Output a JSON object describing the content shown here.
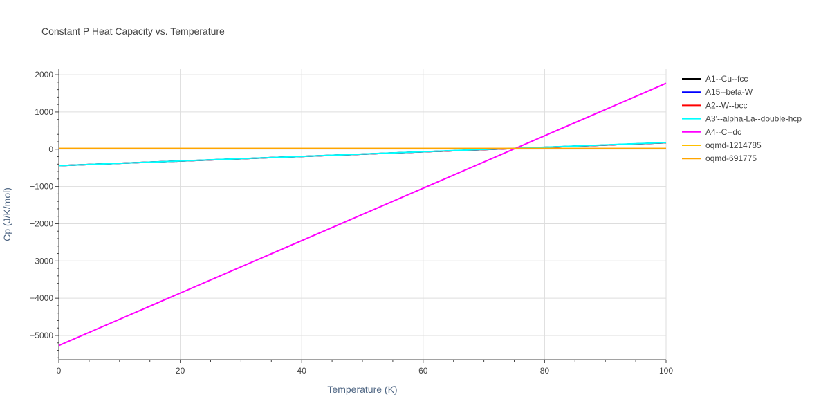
{
  "chart_data": {
    "type": "line",
    "title": "Constant P Heat Capacity vs. Temperature",
    "xlabel": "Temperature (K)",
    "ylabel": "Cp (J/K/mol)",
    "xlim": [
      0,
      100
    ],
    "ylim": [
      -5650,
      2150
    ],
    "xticks": [
      0,
      20,
      40,
      60,
      80,
      100
    ],
    "yticks": [
      2000,
      1000,
      0,
      -1000,
      -2000,
      -3000,
      -4000,
      -5000
    ],
    "ytick_labels": [
      "2000",
      "1000",
      "0",
      "−1000",
      "−2000",
      "−3000",
      "−4000",
      "−5000"
    ],
    "grid": true,
    "legend_position": "right",
    "series": [
      {
        "name": "A1--Cu--fcc",
        "color": "#000000",
        "x": [
          0,
          100
        ],
        "y": [
          -440,
          175
        ]
      },
      {
        "name": "A15--beta-W",
        "color": "#0000ff",
        "x": [
          0,
          100
        ],
        "y": [
          -440,
          175
        ]
      },
      {
        "name": "A2--W--bcc",
        "color": "#ff0000",
        "x": [
          0,
          100
        ],
        "y": [
          -440,
          175
        ]
      },
      {
        "name": "A3'--alpha-La--double-hcp",
        "color": "#00ffff",
        "x": [
          0,
          100
        ],
        "y": [
          -440,
          180
        ]
      },
      {
        "name": "A4--C--dc",
        "color": "#ff00ff",
        "x": [
          0,
          100
        ],
        "y": [
          -5270,
          1770
        ]
      },
      {
        "name": "oqmd-1214785",
        "color": "#ffc000",
        "x": [
          0,
          100
        ],
        "y": [
          20,
          20
        ]
      },
      {
        "name": "oqmd-691775",
        "color": "#ffa500",
        "x": [
          0,
          100
        ],
        "y": [
          22,
          22
        ]
      }
    ]
  }
}
